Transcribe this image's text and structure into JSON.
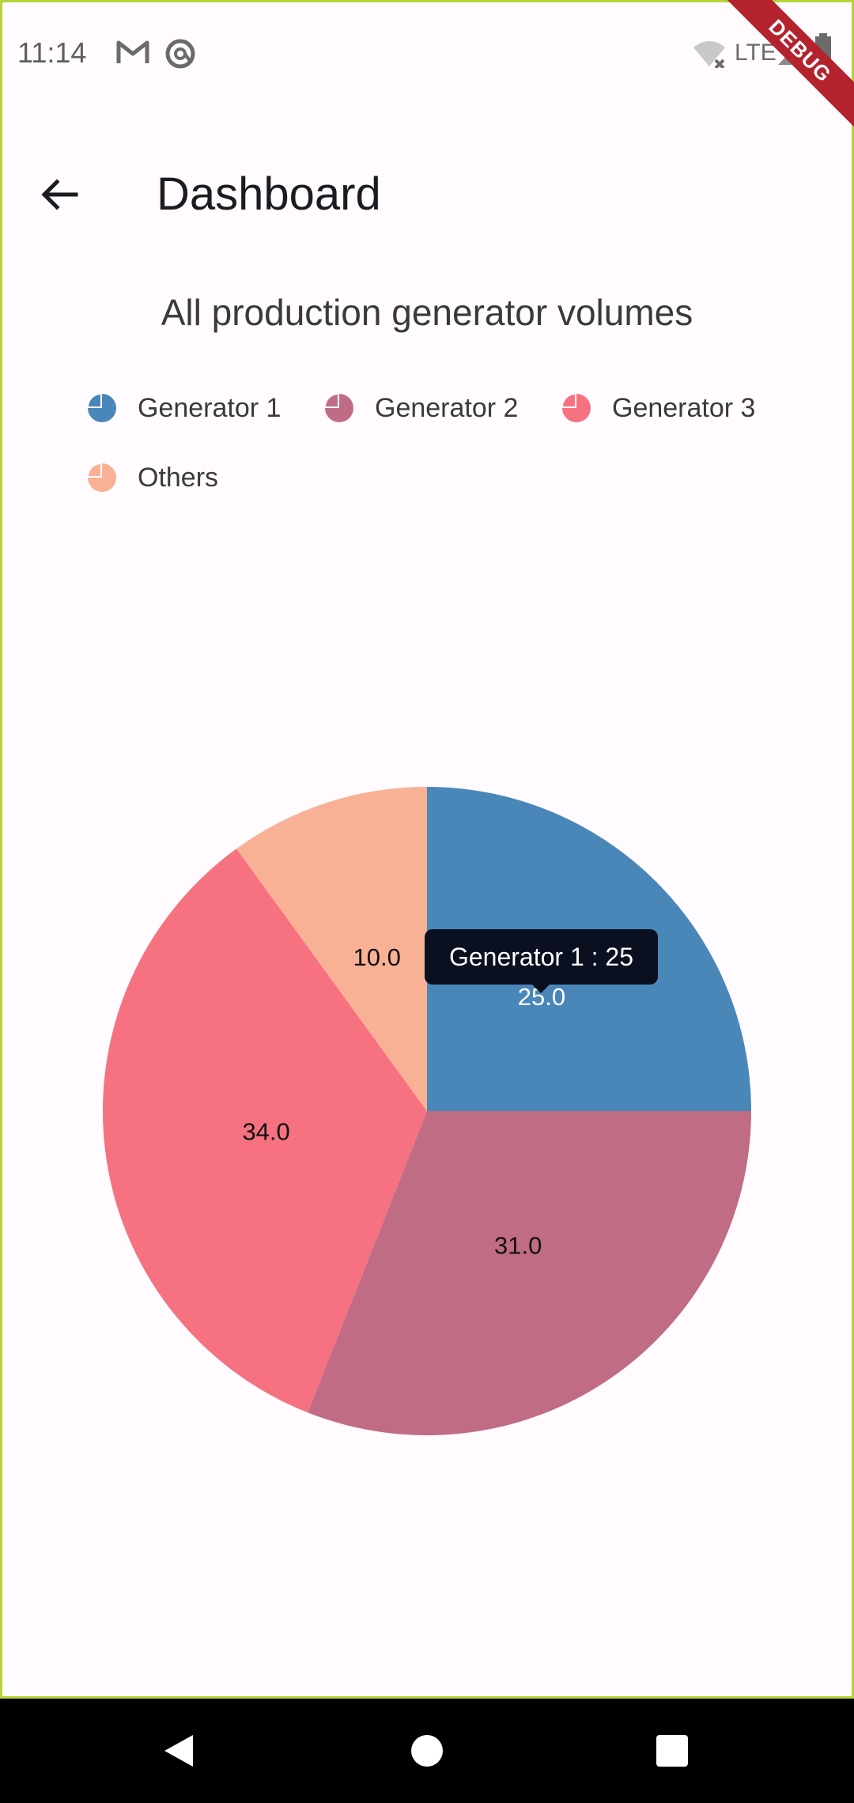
{
  "status_bar": {
    "time": "11:14",
    "network": "LTE",
    "icons": [
      "gmail-icon",
      "at-sign-icon",
      "wifi-off-icon",
      "signal-icon",
      "battery-icon"
    ]
  },
  "debug_banner": "DEBUG",
  "app_bar": {
    "title": "Dashboard",
    "back_icon": "arrow-back-icon"
  },
  "chart_data": {
    "type": "pie",
    "title": "All production generator volumes",
    "categories": [
      "Generator 1",
      "Generator 2",
      "Generator 3",
      "Others"
    ],
    "values": [
      25,
      31,
      34,
      10
    ],
    "data_labels": [
      "25.0",
      "31.0",
      "34.0",
      "10.0"
    ],
    "colors": [
      "#4a87b9",
      "#c06c84",
      "#f67280",
      "#f8b195"
    ],
    "legend_position": "top",
    "tooltip": "Generator 1 : 25"
  },
  "nav_bar": {
    "back": "nav-back-icon",
    "home": "nav-home-icon",
    "recents": "nav-recents-icon"
  }
}
